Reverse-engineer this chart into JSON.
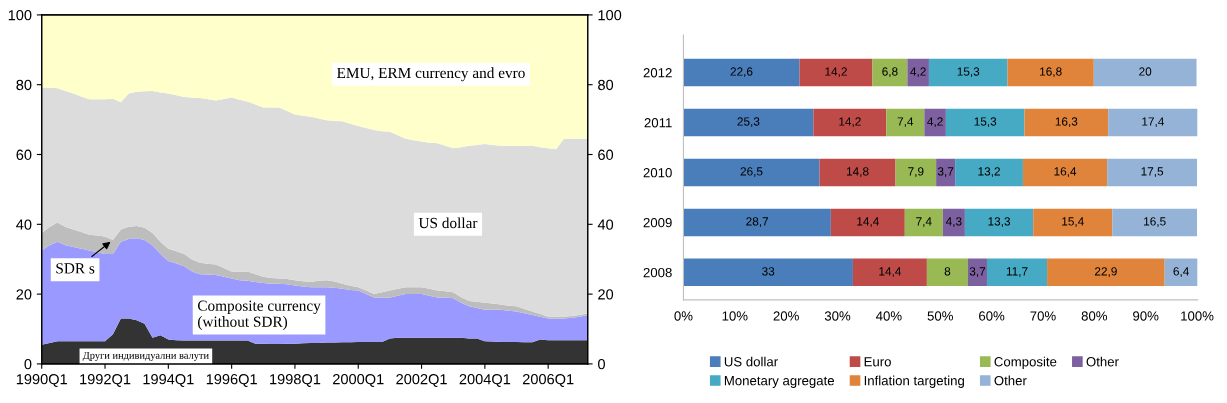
{
  "chart_data": [
    {
      "type": "area",
      "stacked": true,
      "categories": [
        "1990Q1",
        null,
        null,
        null,
        null,
        null,
        null,
        null,
        "1992Q1",
        null,
        null,
        null,
        null,
        null,
        null,
        null,
        "1994Q1",
        null,
        null,
        null,
        null,
        null,
        null,
        null,
        "1996Q1",
        null,
        null,
        null,
        null,
        null,
        null,
        null,
        "1998Q1",
        null,
        null,
        null,
        null,
        null,
        null,
        null,
        "2000Q1",
        null,
        null,
        null,
        null,
        null,
        null,
        null,
        "2002Q1",
        null,
        null,
        null,
        null,
        null,
        null,
        null,
        "2004Q1",
        null,
        null,
        null,
        null,
        null,
        null,
        null,
        "2006Q1",
        null,
        null,
        null,
        null,
        null
      ],
      "series": [
        {
          "name": "Други индивидуални валути",
          "color": "#333333",
          "values": [
            5.5,
            6,
            6.5,
            6.5,
            6.5,
            6.5,
            6.5,
            6.5,
            6.5,
            8.5,
            13,
            13,
            12.5,
            11.5,
            7.5,
            8.2,
            7,
            6.8,
            6.7,
            6.7,
            6.7,
            6.7,
            6.7,
            6.7,
            6.7,
            6.7,
            6.7,
            5.8,
            5.8,
            5.7,
            5.7,
            5.8,
            5.8,
            5.9,
            6,
            6,
            6.1,
            6.1,
            6.2,
            6.2,
            6.3,
            6.3,
            6.3,
            6.3,
            7.3,
            7.5,
            7.5,
            7.5,
            7.5,
            7.5,
            7.5,
            7.5,
            7.5,
            7.5,
            7.3,
            7.3,
            6.5,
            6.4,
            6.3,
            6.3,
            6.3,
            6.2,
            6.2,
            7,
            6.8,
            6.8,
            6.8,
            6.8,
            6.8,
            6.8
          ]
        },
        {
          "name": "Composite currency\n(without SDR)",
          "color": "#9999ff",
          "values": [
            27,
            28,
            28.5,
            27.5,
            27,
            26.5,
            26,
            25.5,
            25,
            23,
            22,
            22.8,
            23.5,
            24,
            26.5,
            23.3,
            22.5,
            22,
            21.3,
            19.8,
            19,
            18.9,
            18.8,
            18.3,
            17.8,
            17.3,
            17.1,
            17.7,
            17.4,
            17.3,
            17.3,
            17,
            16.7,
            16.3,
            16,
            16,
            15.9,
            15.7,
            15.3,
            15,
            14.7,
            13.7,
            12.7,
            12.7,
            11.7,
            12,
            12.5,
            12.5,
            12.5,
            12,
            11.5,
            11.5,
            11.3,
            10,
            9.2,
            8.7,
            9,
            9.1,
            9.2,
            8.9,
            8.7,
            8.3,
            7.8,
            6.5,
            6.2,
            6.2,
            6.2,
            6.4,
            6.7,
            7.2
          ]
        },
        {
          "name": "SDR s",
          "color": "#bdbdbd",
          "values": [
            5,
            5.2,
            5.5,
            5.2,
            5,
            4.8,
            4.5,
            4.8,
            5,
            4,
            3.5,
            3.5,
            3.5,
            3.5,
            3.5,
            3.5,
            3.5,
            3.5,
            3.5,
            3.4,
            3.3,
            3.1,
            3,
            2.5,
            2,
            2.3,
            2.7,
            2.2,
            1.8,
            1.6,
            1.5,
            1.5,
            1.5,
            1.5,
            1.5,
            1.8,
            2,
            1.8,
            1.5,
            1.2,
            1,
            1,
            1,
            1.5,
            2,
            2,
            2,
            2,
            2,
            2,
            2,
            1.8,
            1.7,
            1.6,
            1.5,
            1.8,
            2,
            1.8,
            1.5,
            1.5,
            1.5,
            1.2,
            1,
            0.8,
            0.5,
            0.5,
            0.5,
            0.5,
            0.5,
            0.5
          ]
        },
        {
          "name": "US dollar",
          "color": "#dcdcdc",
          "values": [
            41.7,
            39.9,
            38.5,
            39,
            39,
            38.8,
            38.8,
            39,
            39.3,
            40.5,
            36.5,
            38.2,
            38.5,
            39.1,
            40.7,
            42.8,
            44.5,
            44.7,
            45,
            46.4,
            47.2,
            47.1,
            47,
            48.4,
            49.8,
            49.4,
            48.7,
            48.6,
            48.5,
            48.9,
            49,
            48.2,
            47.5,
            47.4,
            47.3,
            46.5,
            45.8,
            46,
            46.5,
            46.4,
            46.2,
            46.6,
            47,
            46.2,
            45.5,
            44,
            42.5,
            42.1,
            41.7,
            41.9,
            42.2,
            41.7,
            41.3,
            43,
            44.5,
            44.9,
            45.5,
            45.4,
            45.5,
            45.8,
            46,
            46.8,
            47.5,
            47.8,
            48.3,
            48,
            51,
            50.8,
            50.5,
            50
          ]
        },
        {
          "name": "EMU, ERM currency and evro",
          "color": "#ffffcc",
          "values": [
            20.8,
            20.9,
            21,
            21.8,
            22.5,
            23.4,
            24.2,
            24.2,
            24.2,
            24,
            25,
            22.5,
            22,
            21.9,
            21.8,
            22.2,
            22.5,
            23,
            23.5,
            23.7,
            23.8,
            24.2,
            24.5,
            24.1,
            23.7,
            24.3,
            24.8,
            25.7,
            26.5,
            26.5,
            26.5,
            27.5,
            28.5,
            28.9,
            29.2,
            29.7,
            30.2,
            30.4,
            30.5,
            31.2,
            31.8,
            32.4,
            33,
            33.3,
            33.5,
            34.5,
            35.5,
            35.9,
            36.3,
            36.6,
            36.8,
            37.5,
            38.2,
            37.9,
            37.5,
            37.3,
            37,
            37.3,
            37.5,
            37.5,
            37.5,
            37.5,
            37.5,
            37.9,
            38.2,
            38.5,
            35.5,
            35.5,
            35.5,
            35.5
          ]
        }
      ],
      "ylim": [
        0,
        100
      ],
      "yticks": [
        0,
        20,
        40,
        60,
        80,
        100
      ],
      "y2lim": [
        0,
        100
      ],
      "y2ticks": [
        0,
        20,
        40,
        60,
        80,
        100
      ],
      "grid": false
    },
    {
      "type": "bar",
      "stacked": true,
      "orientation": "horizontal",
      "categories": [
        "2012",
        "2011",
        "2010",
        "2009",
        "2008"
      ],
      "series": [
        {
          "name": "US dollar",
          "color": "#4a7ebb",
          "values": [
            22.6,
            25.3,
            26.5,
            28.7,
            33
          ],
          "value_labels": [
            "22,6",
            "25,3",
            "26,5",
            "28,7",
            "33"
          ]
        },
        {
          "name": "Euro",
          "color": "#be4b48",
          "values": [
            14.2,
            14.2,
            14.8,
            14.4,
            14.4
          ],
          "value_labels": [
            "14,2",
            "14,2",
            "14,8",
            "14,4",
            "14,4"
          ]
        },
        {
          "name": "Composite",
          "color": "#98b954",
          "values": [
            6.8,
            7.4,
            7.9,
            7.4,
            8
          ],
          "value_labels": [
            "6,8",
            "7,4",
            "7,9",
            "7,4",
            "8"
          ]
        },
        {
          "name": "Other",
          "color": "#7d60a0",
          "values": [
            4.2,
            4.2,
            3.7,
            4.3,
            3.7
          ],
          "value_labels": [
            "4,2",
            "4,2",
            "3,7",
            "4,3",
            "3,7"
          ]
        },
        {
          "name": "Monetary agregate",
          "color": "#46aac5",
          "values": [
            15.3,
            15.3,
            13.2,
            13.3,
            11.7
          ],
          "value_labels": [
            "15,3",
            "15,3",
            "13,2",
            "13,3",
            "11,7"
          ]
        },
        {
          "name": "Inflation targeting",
          "color": "#e0843c",
          "values": [
            16.8,
            16.3,
            16.4,
            15.4,
            22.9
          ],
          "value_labels": [
            "16,8",
            "16,3",
            "16,4",
            "15,4",
            "22,9"
          ]
        },
        {
          "name": "Other",
          "color": "#95b3d7",
          "values": [
            20,
            17.4,
            17.5,
            16.5,
            6.4
          ],
          "value_labels": [
            "20",
            "17,4",
            "17,5",
            "16,5",
            "6,4"
          ]
        }
      ],
      "xlim": [
        0,
        100.1
      ],
      "xticks": [
        {
          "value": 0,
          "label": "0%"
        },
        {
          "value": 10,
          "label": "10%"
        },
        {
          "value": 20,
          "label": "20%"
        },
        {
          "value": 30,
          "label": "30%"
        },
        {
          "value": 40,
          "label": "40%"
        },
        {
          "value": 50,
          "label": "50%"
        },
        {
          "value": 60,
          "label": "60%"
        },
        {
          "value": 70,
          "label": "70%"
        },
        {
          "value": 80,
          "label": "80%"
        },
        {
          "value": 90,
          "label": "90%"
        },
        {
          "value": 100,
          "label": "100%"
        }
      ],
      "grid": false,
      "legend": "bottom"
    }
  ]
}
